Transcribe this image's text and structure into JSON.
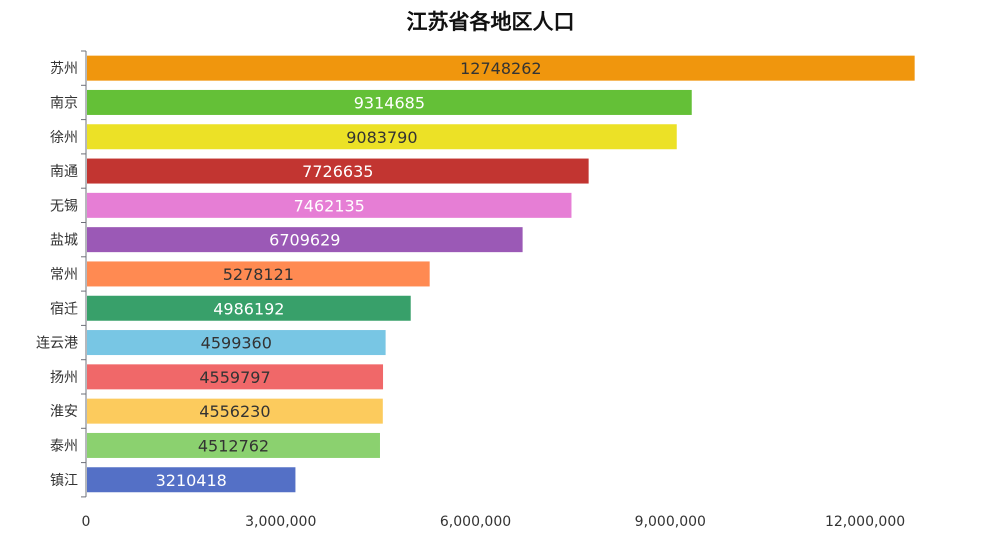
{
  "chart_data": {
    "type": "bar",
    "orientation": "horizontal",
    "title": "江苏省各地区人口",
    "categories": [
      "苏州",
      "南京",
      "徐州",
      "南通",
      "无锡",
      "盐城",
      "常州",
      "宿迁",
      "连云港",
      "扬州",
      "淮安",
      "泰州",
      "镇江"
    ],
    "values": [
      12748262,
      9314685,
      9083790,
      7726635,
      7462135,
      6709629,
      5278121,
      4986192,
      4599360,
      4559797,
      4556230,
      4512762,
      3210418
    ],
    "value_labels": [
      "12748262",
      "9314685",
      "9083790",
      "7726635",
      "7462135",
      "6709629",
      "5278121",
      "4986192",
      "4599360",
      "4559797",
      "4556230",
      "4512762",
      "3210418"
    ],
    "colors": [
      "#f0960d",
      "#64c037",
      "#ece126",
      "#c23531",
      "#e67ed5",
      "#9b59b6",
      "#ff8a52",
      "#38a06a",
      "#78c6e4",
      "#f06869",
      "#fccb5d",
      "#8bd16f",
      "#5470c6"
    ],
    "label_colors": [
      "#333333",
      "#ffffff",
      "#333333",
      "#ffffff",
      "#ffffff",
      "#ffffff",
      "#333333",
      "#ffffff",
      "#333333",
      "#333333",
      "#333333",
      "#333333",
      "#ffffff"
    ],
    "xlim": [
      0,
      13000000
    ],
    "x_ticks": [
      0,
      3000000,
      6000000,
      9000000,
      12000000
    ],
    "x_tick_labels": [
      "0",
      "3,000,000",
      "6,000,000",
      "9,000,000",
      "12,000,000"
    ],
    "grid": false,
    "legend": "none"
  }
}
